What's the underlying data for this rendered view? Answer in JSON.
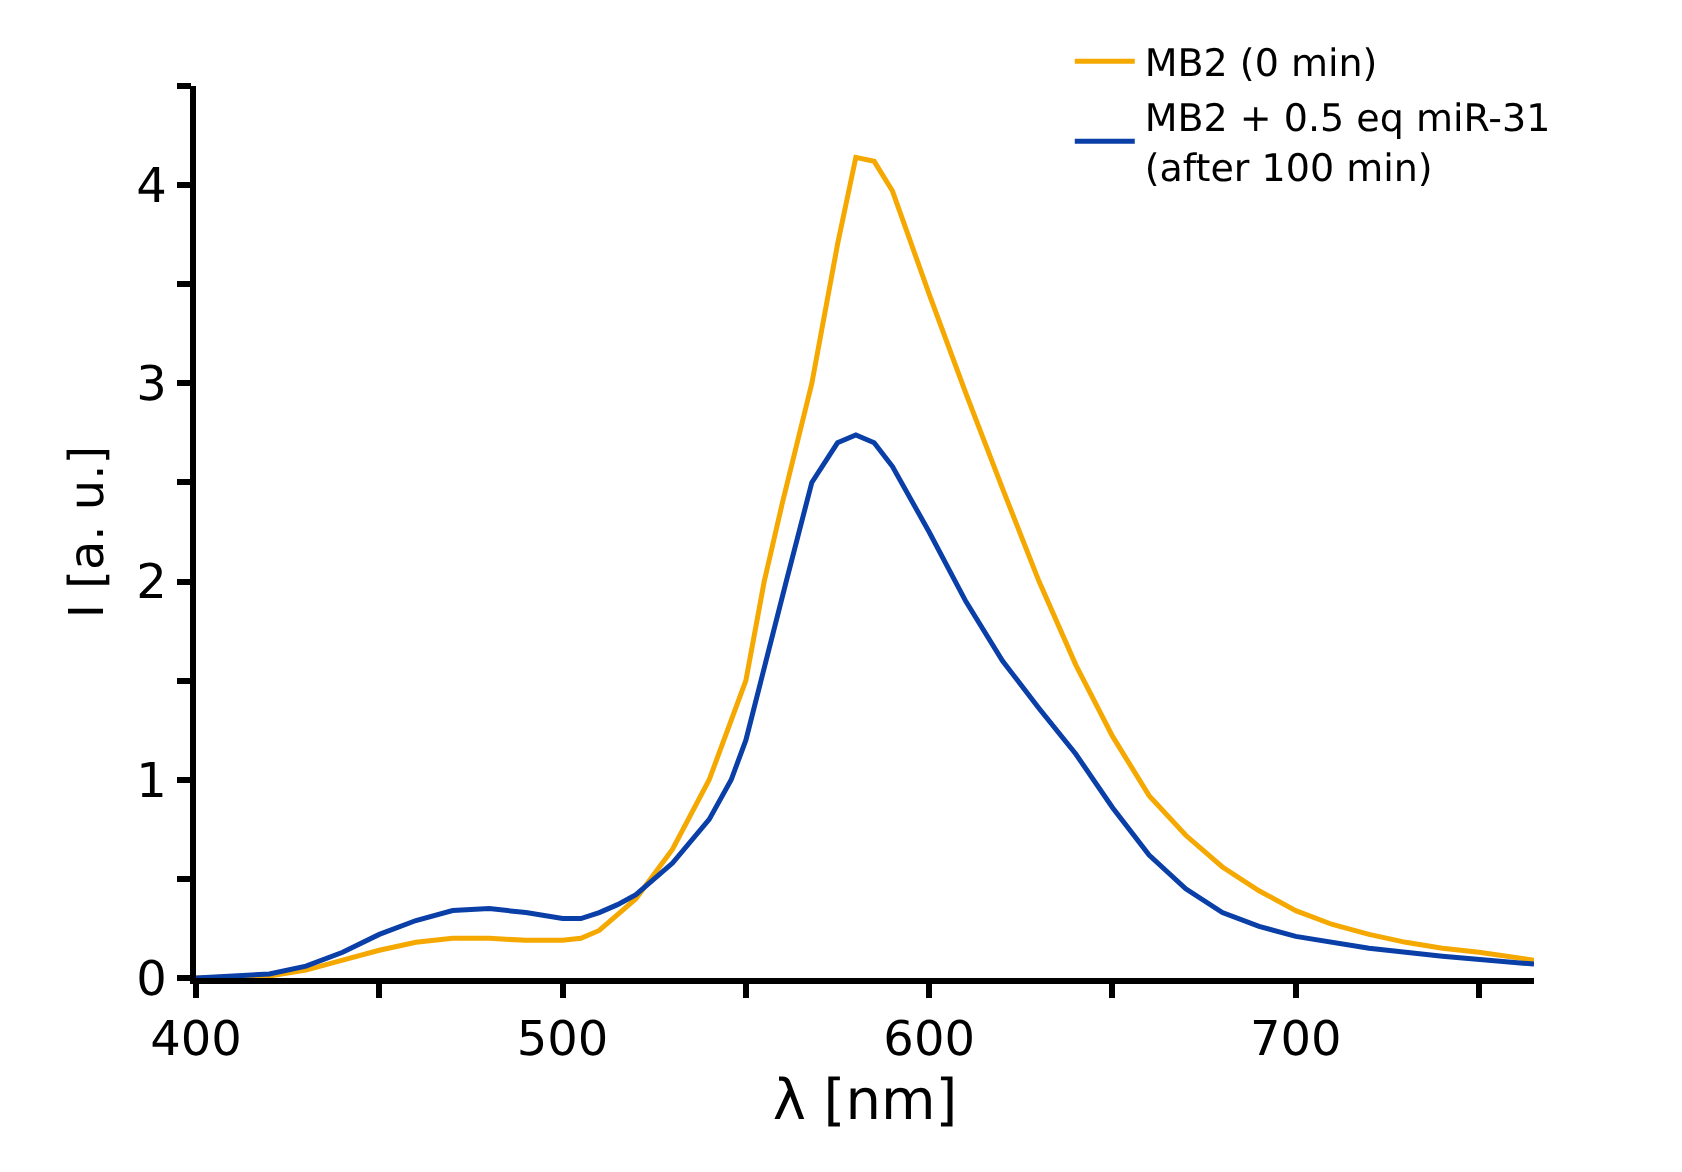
{
  "chart_data": {
    "type": "line",
    "xlabel": "λ [nm]",
    "ylabel": "I [a. u.]",
    "xlim": [
      400,
      765
    ],
    "xticks": [
      400,
      {
        "value": 450,
        "label": null
      },
      500,
      {
        "value": 550,
        "label": null
      },
      600,
      {
        "value": 650,
        "label": null
      },
      700,
      {
        "value": 750,
        "label": null
      }
    ],
    "ylim": [
      0,
      4.5
    ],
    "yticks": [
      0,
      {
        "value": 0.5,
        "label": null
      },
      1,
      {
        "value": 1.5,
        "label": null
      },
      2,
      {
        "value": 2.5,
        "label": null
      },
      3,
      {
        "value": 3.5,
        "label": null
      },
      4,
      {
        "value": 4.5,
        "label": null
      }
    ],
    "legend": "top right",
    "marker": "none",
    "line_style": "solid",
    "series": [
      {
        "name": "MB2 (0 min)",
        "color": "#f5a800",
        "x": [
          400,
          420,
          430,
          440,
          450,
          460,
          470,
          480,
          490,
          500,
          505,
          510,
          515,
          520,
          530,
          540,
          550,
          555,
          560,
          568,
          575,
          580,
          585,
          590,
          600,
          610,
          620,
          630,
          640,
          650,
          660,
          670,
          680,
          690,
          700,
          710,
          720,
          730,
          740,
          750,
          765
        ],
        "values": [
          0,
          0.01,
          0.04,
          0.09,
          0.14,
          0.18,
          0.2,
          0.2,
          0.19,
          0.19,
          0.2,
          0.24,
          0.32,
          0.4,
          0.65,
          1.0,
          1.5,
          2.0,
          2.4,
          3.0,
          3.7,
          4.14,
          4.12,
          3.97,
          3.45,
          2.95,
          2.47,
          2.0,
          1.58,
          1.22,
          0.92,
          0.72,
          0.56,
          0.44,
          0.34,
          0.27,
          0.22,
          0.18,
          0.15,
          0.13,
          0.09
        ]
      },
      {
        "name": "MB2 + 0.5 eq miR-31 (after 100 min)",
        "color": "#0a3fa8",
        "x": [
          400,
          420,
          430,
          440,
          450,
          460,
          470,
          480,
          490,
          500,
          505,
          510,
          515,
          520,
          530,
          540,
          546,
          550,
          561,
          568,
          575,
          580,
          585,
          590,
          600,
          610,
          620,
          630,
          640,
          650,
          660,
          670,
          680,
          690,
          700,
          720,
          740,
          765
        ],
        "values": [
          0,
          0.02,
          0.06,
          0.13,
          0.22,
          0.29,
          0.34,
          0.35,
          0.33,
          0.3,
          0.3,
          0.33,
          0.37,
          0.42,
          0.58,
          0.8,
          1.0,
          1.2,
          2.0,
          2.5,
          2.7,
          2.74,
          2.7,
          2.58,
          2.25,
          1.9,
          1.6,
          1.36,
          1.13,
          0.86,
          0.62,
          0.45,
          0.33,
          0.26,
          0.21,
          0.15,
          0.11,
          0.07
        ]
      }
    ]
  }
}
